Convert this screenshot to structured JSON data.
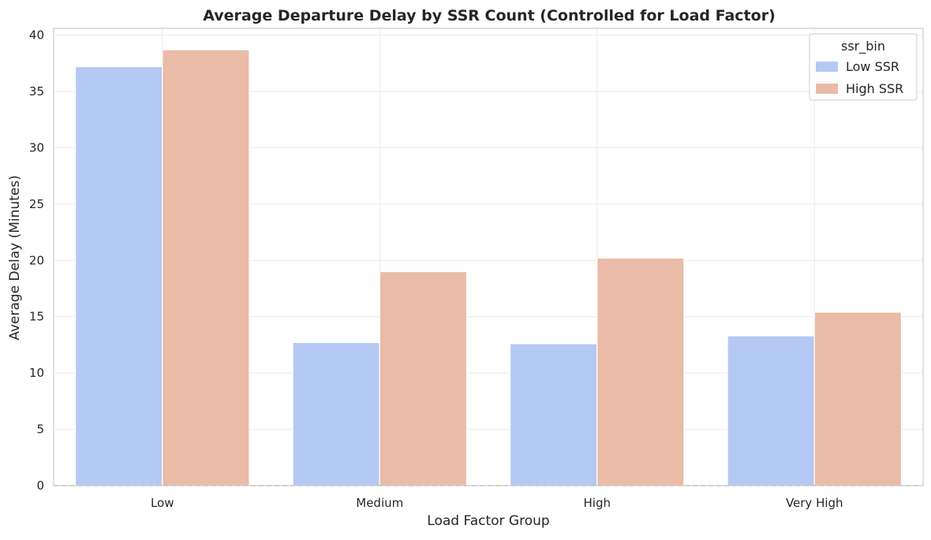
{
  "chart_data": {
    "type": "bar",
    "title": "Average Departure Delay by SSR Count (Controlled for Load Factor)",
    "xlabel": "Load Factor Group",
    "ylabel": "Average Delay (Minutes)",
    "categories": [
      "Low",
      "Medium",
      "High",
      "Very High"
    ],
    "series": [
      {
        "name": "Low SSR",
        "values": [
          37.2,
          12.7,
          12.6,
          13.3
        ],
        "color": "#b4c9f3"
      },
      {
        "name": "High SSR",
        "values": [
          38.7,
          19.0,
          20.2,
          15.4
        ],
        "color": "#eabba6"
      }
    ],
    "ylim": [
      0,
      40.6
    ],
    "yticks": [
      0,
      5,
      10,
      15,
      20,
      25,
      30,
      35,
      40
    ],
    "grid": true,
    "reference_line": {
      "y": 0,
      "style": "dashed",
      "color": "#b3b3b3"
    },
    "legend": {
      "title": "ssr_bin",
      "placement": "top-right"
    }
  }
}
